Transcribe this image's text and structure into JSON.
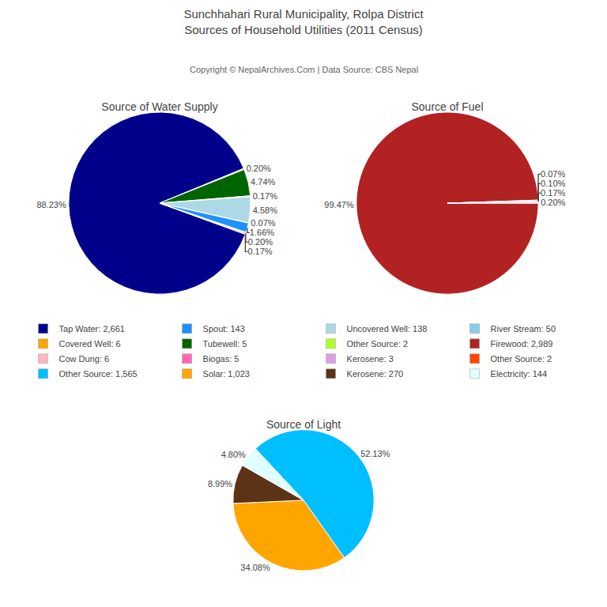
{
  "title": [
    "Sunchhahari Rural Municipality, Rolpa District",
    "Sources of Household Utilities (2011 Census)"
  ],
  "subtitle": "Copyright © NepalArchives.Com | Data Source: CBS Nepal",
  "chart_data": [
    {
      "type": "pie",
      "title": "Source of Water Supply",
      "values": [
        88.23,
        0.2,
        4.74,
        0.17,
        4.58,
        0.07,
        1.66,
        0.2,
        0.17
      ],
      "value_labels": [
        "88.23%",
        "0.20%",
        "4.74%",
        "0.17%",
        "4.58%",
        "0.07%",
        "1.66%",
        "0.20%",
        "0.17%"
      ],
      "colors": [
        "#00008B",
        "#FFA500",
        "#006400",
        "#ADFF2F",
        "#ADD8E6",
        "#87CEEB",
        "#1E90FF",
        "#FFB6C1",
        "#FF69B4"
      ],
      "data_labels": true
    },
    {
      "type": "pie",
      "title": "Source of Fuel",
      "values": [
        99.47,
        0.07,
        0.1,
        0.17,
        0.2
      ],
      "value_labels": [
        "99.47%",
        "0.07%",
        "0.10%",
        "0.17%",
        "0.20%"
      ],
      "colors": [
        "#B22222",
        "#FF4500",
        "#DDA0DD",
        "#FF69B4",
        "#FFB6C1"
      ],
      "data_labels": true
    },
    {
      "type": "pie",
      "title": "Source of Light",
      "values": [
        52.13,
        34.08,
        8.99,
        4.8
      ],
      "value_labels": [
        "52.13%",
        "34.08%",
        "8.99%",
        "4.80%"
      ],
      "colors": [
        "#00BFFF",
        "#FFA500",
        "#5C3317",
        "#E0FFFF"
      ],
      "data_labels": true
    }
  ],
  "legend_items": [
    {
      "name": "Tap Water: 2,661",
      "color": "#00008B"
    },
    {
      "name": "Covered Well: 6",
      "color": "#FFA500"
    },
    {
      "name": "Cow Dung: 6",
      "color": "#FFB6C1"
    },
    {
      "name": "Other Source: 1,565",
      "color": "#00BFFF"
    },
    {
      "name": "Spout: 143",
      "color": "#1E90FF"
    },
    {
      "name": "Tubewell: 5",
      "color": "#006400"
    },
    {
      "name": "Biogas: 5",
      "color": "#FF69B4"
    },
    {
      "name": "Solar: 1,023",
      "color": "#FFA500"
    },
    {
      "name": "Uncovered Well: 138",
      "color": "#ADD8E6"
    },
    {
      "name": "Other Source: 2",
      "color": "#ADFF2F"
    },
    {
      "name": "Kerosene: 3",
      "color": "#DDA0DD"
    },
    {
      "name": "Kerosene: 270",
      "color": "#5C3317"
    },
    {
      "name": "River Stream: 50",
      "color": "#87CEEB"
    },
    {
      "name": "Firewood: 2,989",
      "color": "#B22222"
    },
    {
      "name": "Other Source: 2",
      "color": "#FF4500"
    },
    {
      "name": "Electricity: 144",
      "color": "#E0FFFF"
    }
  ]
}
